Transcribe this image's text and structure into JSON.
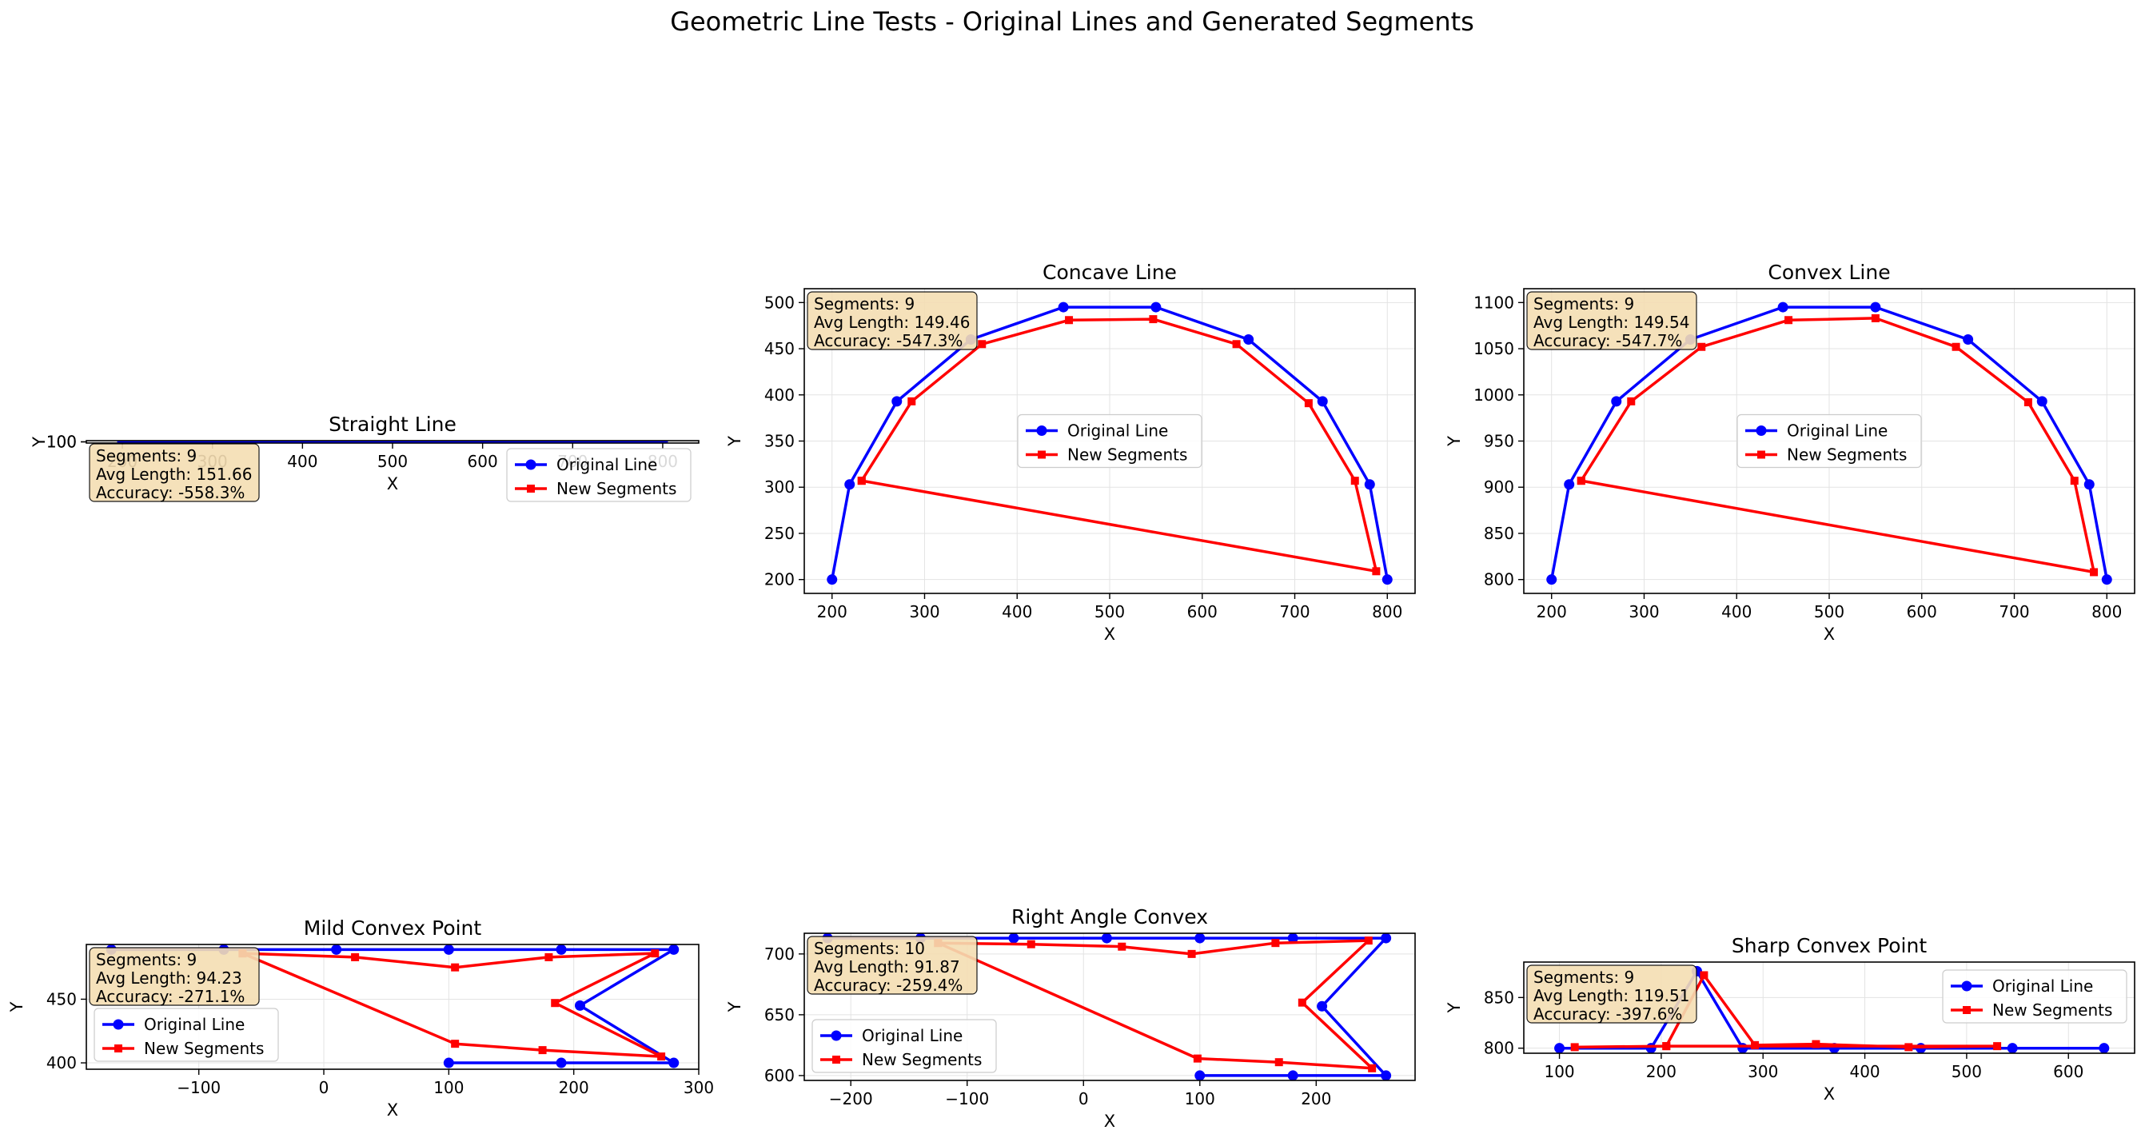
{
  "figure": {
    "title": "Geometric Line Tests - Original Lines and Generated Segments"
  },
  "colors": {
    "original": "#0000ff",
    "segments": "#ff0000",
    "grid": "#b0b0b0",
    "stats_box_fill": "#f5deb3",
    "axis": "#000000"
  },
  "chart_data": [
    {
      "type": "line",
      "title": "Straight Line",
      "xlabel": "X",
      "ylabel": "Y",
      "xlim": [
        160,
        840
      ],
      "ylim": [
        99.95,
        100.05
      ],
      "xticks": [
        "200",
        "300",
        "400",
        "500",
        "600",
        "700",
        "800"
      ],
      "yticks": [
        "100",
        "100"
      ],
      "grid": true,
      "legend": "upper-right",
      "stats": [
        "Segments: 9",
        "Avg Length: 151.66",
        "Accuracy: -558.3%"
      ],
      "series": [
        {
          "name": "Original Line",
          "marker": "circle",
          "points": [
            [
              200,
              100
            ],
            [
              300,
              100
            ],
            [
              400,
              100
            ],
            [
              500,
              100
            ],
            [
              600,
              100
            ],
            [
              700,
              100
            ],
            [
              800,
              100
            ]
          ]
        },
        {
          "name": "New Segments",
          "marker": "square",
          "points": []
        }
      ]
    },
    {
      "type": "line",
      "title": "Concave Line",
      "xlabel": "X",
      "ylabel": "Y",
      "xlim": [
        170,
        830
      ],
      "ylim": [
        185,
        515
      ],
      "xticks": [
        "200",
        "300",
        "400",
        "500",
        "600",
        "700",
        "800"
      ],
      "yticks": [
        "200",
        "250",
        "300",
        "350",
        "400",
        "450",
        "500"
      ],
      "grid": true,
      "legend": "center",
      "stats": [
        "Segments: 9",
        "Avg Length: 149.46",
        "Accuracy: -547.3%"
      ],
      "series": [
        {
          "name": "Original Line",
          "marker": "circle",
          "points": [
            [
              200,
              200
            ],
            [
              219,
              303
            ],
            [
              270,
              393
            ],
            [
              350,
              460
            ],
            [
              450,
              495
            ],
            [
              550,
              495
            ],
            [
              650,
              460
            ],
            [
              730,
              393
            ],
            [
              781,
              303
            ],
            [
              800,
              200
            ]
          ]
        },
        {
          "name": "New Segments",
          "marker": "square",
          "points": [
            [
              232,
              307
            ],
            [
              286,
              393
            ],
            [
              362,
              455
            ],
            [
              456,
              481
            ],
            [
              547,
              482
            ],
            [
              637,
              455
            ],
            [
              715,
              391
            ],
            [
              765,
              307
            ],
            [
              788,
              209
            ],
            [
              232,
              307
            ]
          ]
        }
      ]
    },
    {
      "type": "line",
      "title": "Convex Line",
      "xlabel": "X",
      "ylabel": "Y",
      "xlim": [
        170,
        830
      ],
      "ylim": [
        785,
        1115
      ],
      "xticks": [
        "200",
        "300",
        "400",
        "500",
        "600",
        "700",
        "800"
      ],
      "yticks": [
        "800",
        "850",
        "900",
        "950",
        "1000",
        "1050",
        "1100"
      ],
      "grid": true,
      "legend": "center",
      "stats": [
        "Segments: 9",
        "Avg Length: 149.54",
        "Accuracy: -547.7%"
      ],
      "series": [
        {
          "name": "Original Line",
          "marker": "circle",
          "points": [
            [
              200,
              800
            ],
            [
              219,
              903
            ],
            [
              270,
              993
            ],
            [
              350,
              1060
            ],
            [
              450,
              1095
            ],
            [
              550,
              1095
            ],
            [
              650,
              1060
            ],
            [
              730,
              993
            ],
            [
              781,
              903
            ],
            [
              800,
              800
            ]
          ]
        },
        {
          "name": "New Segments",
          "marker": "square",
          "points": [
            [
              232,
              907
            ],
            [
              286,
              993
            ],
            [
              362,
              1052
            ],
            [
              456,
              1081
            ],
            [
              550,
              1083
            ],
            [
              637,
              1052
            ],
            [
              715,
              992
            ],
            [
              765,
              907
            ],
            [
              786,
              808
            ],
            [
              232,
              907
            ]
          ]
        }
      ]
    },
    {
      "type": "line",
      "title": "Mild Convex Point",
      "xlabel": "X",
      "ylabel": "Y",
      "xlim": [
        -190,
        300
      ],
      "ylim": [
        395,
        493
      ],
      "xticks": [
        "−100",
        "0",
        "100",
        "200",
        "300"
      ],
      "yticks": [
        "400",
        "450"
      ],
      "grid": true,
      "legend": "lower-left",
      "stats": [
        "Segments: 9",
        "Avg Length: 94.23",
        "Accuracy: -271.1%"
      ],
      "series": [
        {
          "name": "Original Line",
          "marker": "circle",
          "points": [
            [
              -170,
              489
            ],
            [
              -80,
              489
            ],
            [
              10,
              489
            ],
            [
              100,
              489
            ],
            [
              190,
              489
            ],
            [
              280,
              489
            ],
            [
              205,
              445
            ],
            [
              280,
              400
            ],
            [
              190,
              400
            ],
            [
              100,
              400
            ]
          ]
        },
        {
          "name": "New Segments",
          "marker": "square",
          "points": [
            [
              -65,
              486
            ],
            [
              25,
              483
            ],
            [
              105,
              475
            ],
            [
              180,
              483
            ],
            [
              265,
              486
            ],
            [
              185,
              447
            ],
            [
              270,
              405
            ],
            [
              175,
              410
            ],
            [
              105,
              415
            ],
            [
              -65,
              486
            ]
          ]
        }
      ]
    },
    {
      "type": "line",
      "title": "Right Angle Convex",
      "xlabel": "X",
      "ylabel": "Y",
      "xlim": [
        -240,
        285
      ],
      "ylim": [
        596,
        717
      ],
      "xticks": [
        "−200",
        "−100",
        "0",
        "100",
        "200"
      ],
      "yticks": [
        "600",
        "650",
        "700"
      ],
      "grid": true,
      "legend": "lower-left",
      "stats": [
        "Segments: 10",
        "Avg Length: 91.87",
        "Accuracy: -259.4%"
      ],
      "series": [
        {
          "name": "Original Line",
          "marker": "circle",
          "points": [
            [
              -220,
              713
            ],
            [
              -140,
              713
            ],
            [
              -60,
              713
            ],
            [
              20,
              713
            ],
            [
              100,
              713
            ],
            [
              180,
              713
            ],
            [
              260,
              713
            ],
            [
              205,
              657
            ],
            [
              260,
              600
            ],
            [
              180,
              600
            ],
            [
              100,
              600
            ]
          ]
        },
        {
          "name": "New Segments",
          "marker": "square",
          "points": [
            [
              -125,
              709
            ],
            [
              -45,
              708
            ],
            [
              33,
              706
            ],
            [
              93,
              700
            ],
            [
              165,
              709
            ],
            [
              245,
              711
            ],
            [
              188,
              660
            ],
            [
              248,
              606
            ],
            [
              168,
              611
            ],
            [
              98,
              614
            ],
            [
              -125,
              709
            ]
          ]
        }
      ]
    },
    {
      "type": "line",
      "title": "Sharp Convex Point",
      "xlabel": "X",
      "ylabel": "Y",
      "xlim": [
        65,
        665
      ],
      "ylim": [
        795,
        885
      ],
      "xticks": [
        "100",
        "200",
        "300",
        "400",
        "500",
        "600"
      ],
      "yticks": [
        "800",
        "850"
      ],
      "grid": true,
      "legend": "upper-right",
      "stats": [
        "Segments: 9",
        "Avg Length: 119.51",
        "Accuracy: -397.6%"
      ],
      "series": [
        {
          "name": "Original Line",
          "marker": "circle",
          "points": [
            [
              100,
              800
            ],
            [
              190,
              800
            ],
            [
              235,
              876
            ],
            [
              280,
              800
            ],
            [
              370,
              800
            ],
            [
              455,
              800
            ],
            [
              545,
              800
            ],
            [
              635,
              800
            ]
          ]
        },
        {
          "name": "New Segments",
          "marker": "square",
          "points": [
            [
              115,
              801
            ],
            [
              205,
              802
            ],
            [
              242,
              872
            ],
            [
              292,
              803
            ],
            [
              352,
              804
            ],
            [
              443,
              801
            ],
            [
              530,
              802
            ],
            [
              205,
              802
            ]
          ]
        }
      ]
    }
  ]
}
